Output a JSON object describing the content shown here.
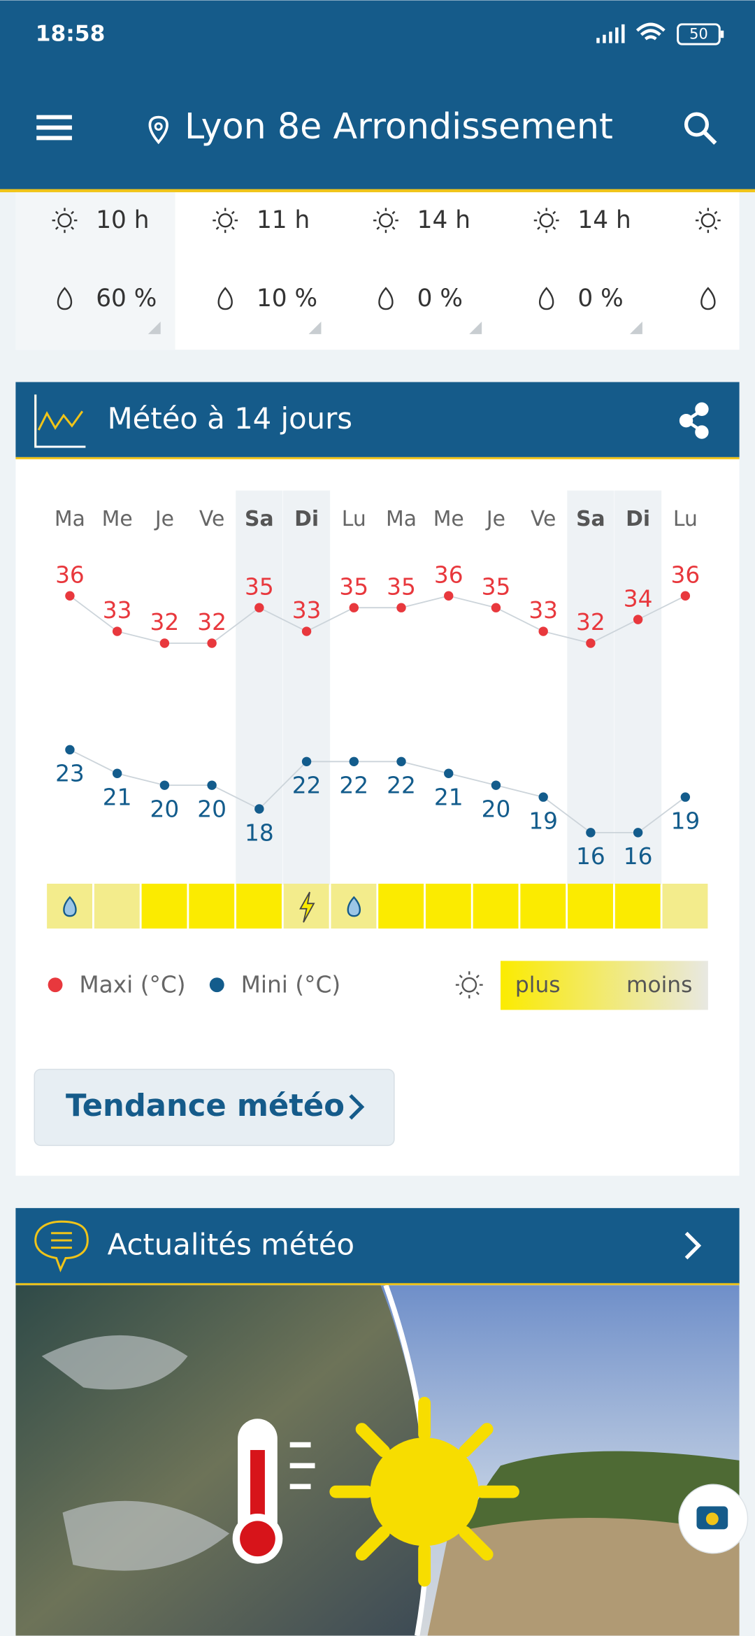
{
  "status": {
    "time": "18:58",
    "battery": "50"
  },
  "header": {
    "location": "Lyon 8e Arrondissement"
  },
  "hourly": [
    {
      "sun": "10 h",
      "rain": "60 %"
    },
    {
      "sun": "11 h",
      "rain": "10 %"
    },
    {
      "sun": "14 h",
      "rain": "0 %"
    },
    {
      "sun": "14 h",
      "rain": "0 %"
    }
  ],
  "forecast": {
    "title": "Météo à 14 jours",
    "chart_data": {
      "type": "line",
      "categories": [
        "Ma",
        "Me",
        "Je",
        "Ve",
        "Sa",
        "Di",
        "Lu",
        "Ma",
        "Me",
        "Je",
        "Ve",
        "Sa",
        "Di",
        "Lu"
      ],
      "weekend": [
        4,
        5,
        11,
        12
      ],
      "series": [
        {
          "name": "Maxi (°C)",
          "color": "#e8383d",
          "values": [
            36,
            33,
            32,
            32,
            35,
            33,
            35,
            35,
            36,
            35,
            33,
            32,
            34,
            36
          ]
        },
        {
          "name": "Mini (°C)",
          "color": "#135c8c",
          "values": [
            23,
            21,
            20,
            20,
            18,
            22,
            22,
            22,
            21,
            20,
            19,
            16,
            16,
            19
          ]
        }
      ],
      "sunshine_colors": [
        "#f3ec8c",
        "#f3ec8c",
        "#fbeb00",
        "#fbeb00",
        "#fbeb00",
        "#f3ec8c",
        "#f3ec8c",
        "#fbeb00",
        "#fbeb00",
        "#fbeb00",
        "#fbeb00",
        "#fbeb00",
        "#fbeb00",
        "#f3ec8c"
      ],
      "sunshine_icons": [
        "drop",
        null,
        null,
        null,
        null,
        "lightning",
        "drop",
        null,
        null,
        null,
        null,
        null,
        null,
        null
      ],
      "sunshine_legend": {
        "high": "plus",
        "low": "moins"
      }
    },
    "button": "Tendance météo"
  },
  "news": {
    "title": "Actualités météo"
  }
}
